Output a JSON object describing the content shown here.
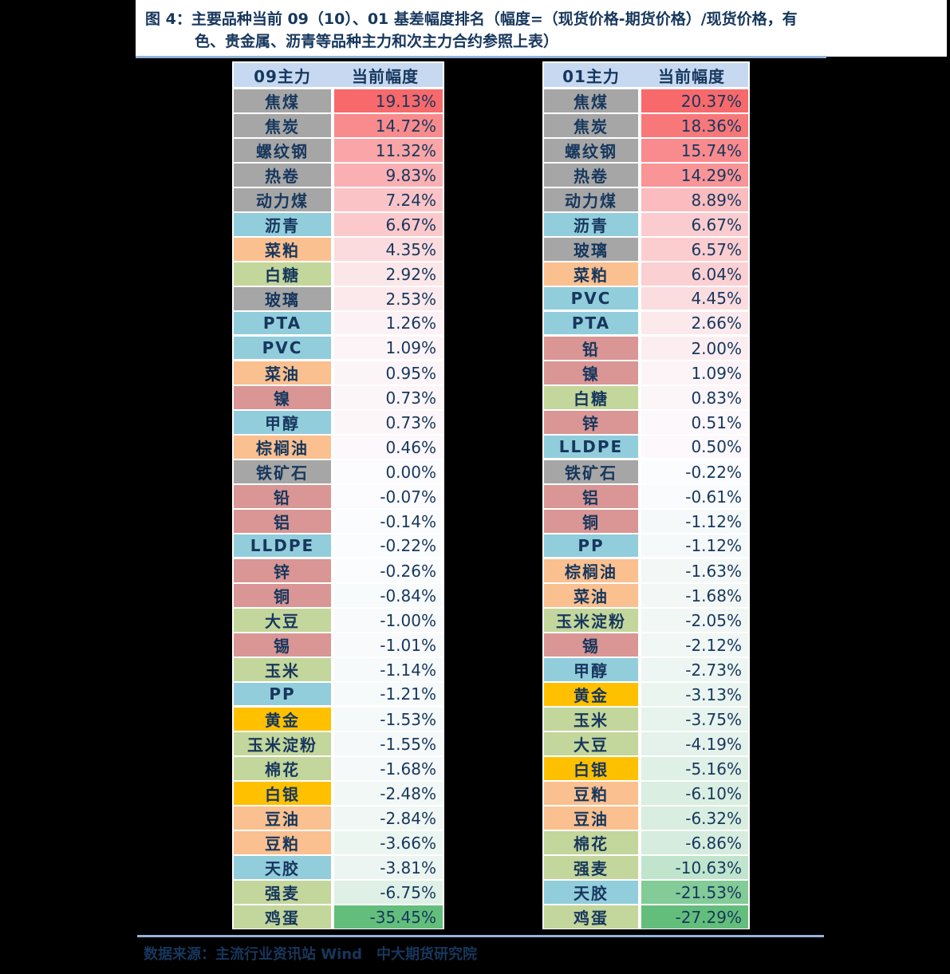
{
  "figure": {
    "title_line1": "图 4：主要品种当前 09（10）、01 基差幅度排名（幅度=（现货价格-期货价格）/现货价格，有",
    "title_line2": "色、贵金属、沥青等品种主力和次主力合约参照上表）",
    "source": "数据来源：主流行业资讯站 Wind　中大期货研究院"
  },
  "colors": {
    "background": "#000000",
    "panel": "#ffffff",
    "text": "#17375d",
    "rule": "#95b3d7",
    "header_bg": "#c6d9f1",
    "gradient_max_red": "#f8696b",
    "gradient_mid_white": "#fcfcff",
    "gradient_min_green": "#63be7b",
    "category_colors": {
      "coal-steel": "#a6a6a6",
      "chemical": "#92cddc",
      "oils-meal": "#fac08f",
      "agriculture": "#c3d69b",
      "base-metal": "#d99694",
      "precious-metal": "#ffc000"
    }
  },
  "chart_data": [
    {
      "type": "table",
      "title": "09主力基差幅度排名",
      "columns": [
        "09主力",
        "当前幅度"
      ],
      "color_scale": {
        "max_color": "#f8696b",
        "mid_color": "#fcfcff",
        "min_color": "#63be7b",
        "midpoint": 0
      },
      "rows": [
        {
          "name": "焦煤",
          "category": "coal-steel",
          "value": 19.13,
          "display": "19.13%"
        },
        {
          "name": "焦炭",
          "category": "coal-steel",
          "value": 14.72,
          "display": "14.72%"
        },
        {
          "name": "螺纹钢",
          "category": "coal-steel",
          "value": 11.32,
          "display": "11.32%"
        },
        {
          "name": "热卷",
          "category": "coal-steel",
          "value": 9.83,
          "display": "9.83%"
        },
        {
          "name": "动力煤",
          "category": "coal-steel",
          "value": 7.24,
          "display": "7.24%"
        },
        {
          "name": "沥青",
          "category": "chemical",
          "value": 6.67,
          "display": "6.67%"
        },
        {
          "name": "菜粕",
          "category": "oils-meal",
          "value": 4.35,
          "display": "4.35%"
        },
        {
          "name": "白糖",
          "category": "agriculture",
          "value": 2.92,
          "display": "2.92%"
        },
        {
          "name": "玻璃",
          "category": "coal-steel",
          "value": 2.53,
          "display": "2.53%"
        },
        {
          "name": "PTA",
          "category": "chemical",
          "value": 1.26,
          "display": "1.26%"
        },
        {
          "name": "PVC",
          "category": "chemical",
          "value": 1.09,
          "display": "1.09%"
        },
        {
          "name": "菜油",
          "category": "oils-meal",
          "value": 0.95,
          "display": "0.95%"
        },
        {
          "name": "镍",
          "category": "base-metal",
          "value": 0.73,
          "display": "0.73%"
        },
        {
          "name": "甲醇",
          "category": "chemical",
          "value": 0.73,
          "display": "0.73%"
        },
        {
          "name": "棕榈油",
          "category": "oils-meal",
          "value": 0.46,
          "display": "0.46%"
        },
        {
          "name": "铁矿石",
          "category": "coal-steel",
          "value": 0.0,
          "display": "0.00%"
        },
        {
          "name": "铅",
          "category": "base-metal",
          "value": -0.07,
          "display": "-0.07%"
        },
        {
          "name": "铝",
          "category": "base-metal",
          "value": -0.14,
          "display": "-0.14%"
        },
        {
          "name": "LLDPE",
          "category": "chemical",
          "value": -0.22,
          "display": "-0.22%"
        },
        {
          "name": "锌",
          "category": "base-metal",
          "value": -0.26,
          "display": "-0.26%"
        },
        {
          "name": "铜",
          "category": "base-metal",
          "value": -0.84,
          "display": "-0.84%"
        },
        {
          "name": "大豆",
          "category": "agriculture",
          "value": -1.0,
          "display": "-1.00%"
        },
        {
          "name": "锡",
          "category": "base-metal",
          "value": -1.01,
          "display": "-1.01%"
        },
        {
          "name": "玉米",
          "category": "agriculture",
          "value": -1.14,
          "display": "-1.14%"
        },
        {
          "name": "PP",
          "category": "chemical",
          "value": -1.21,
          "display": "-1.21%"
        },
        {
          "name": "黄金",
          "category": "precious-metal",
          "value": -1.53,
          "display": "-1.53%"
        },
        {
          "name": "玉米淀粉",
          "category": "agriculture",
          "value": -1.55,
          "display": "-1.55%"
        },
        {
          "name": "棉花",
          "category": "agriculture",
          "value": -1.68,
          "display": "-1.68%"
        },
        {
          "name": "白银",
          "category": "precious-metal",
          "value": -2.48,
          "display": "-2.48%"
        },
        {
          "name": "豆油",
          "category": "oils-meal",
          "value": -2.84,
          "display": "-2.84%"
        },
        {
          "name": "豆粕",
          "category": "oils-meal",
          "value": -3.66,
          "display": "-3.66%"
        },
        {
          "name": "天胶",
          "category": "chemical",
          "value": -3.81,
          "display": "-3.81%"
        },
        {
          "name": "强麦",
          "category": "agriculture",
          "value": -6.75,
          "display": "-6.75%"
        },
        {
          "name": "鸡蛋",
          "category": "agriculture",
          "value": -35.45,
          "display": "-35.45%"
        }
      ]
    },
    {
      "type": "table",
      "title": "01主力基差幅度排名",
      "columns": [
        "01主力",
        "当前幅度"
      ],
      "color_scale": {
        "max_color": "#f8696b",
        "mid_color": "#fcfcff",
        "min_color": "#63be7b",
        "midpoint": 0
      },
      "rows": [
        {
          "name": "焦煤",
          "category": "coal-steel",
          "value": 20.37,
          "display": "20.37%"
        },
        {
          "name": "焦炭",
          "category": "coal-steel",
          "value": 18.36,
          "display": "18.36%"
        },
        {
          "name": "螺纹钢",
          "category": "coal-steel",
          "value": 15.74,
          "display": "15.74%"
        },
        {
          "name": "热卷",
          "category": "coal-steel",
          "value": 14.29,
          "display": "14.29%"
        },
        {
          "name": "动力煤",
          "category": "coal-steel",
          "value": 8.89,
          "display": "8.89%"
        },
        {
          "name": "沥青",
          "category": "chemical",
          "value": 6.67,
          "display": "6.67%"
        },
        {
          "name": "玻璃",
          "category": "coal-steel",
          "value": 6.57,
          "display": "6.57%"
        },
        {
          "name": "菜粕",
          "category": "oils-meal",
          "value": 6.04,
          "display": "6.04%"
        },
        {
          "name": "PVC",
          "category": "chemical",
          "value": 4.45,
          "display": "4.45%"
        },
        {
          "name": "PTA",
          "category": "chemical",
          "value": 2.66,
          "display": "2.66%"
        },
        {
          "name": "铅",
          "category": "base-metal",
          "value": 2.0,
          "display": "2.00%"
        },
        {
          "name": "镍",
          "category": "base-metal",
          "value": 1.09,
          "display": "1.09%"
        },
        {
          "name": "白糖",
          "category": "agriculture",
          "value": 0.83,
          "display": "0.83%"
        },
        {
          "name": "锌",
          "category": "base-metal",
          "value": 0.51,
          "display": "0.51%"
        },
        {
          "name": "LLDPE",
          "category": "chemical",
          "value": 0.5,
          "display": "0.50%"
        },
        {
          "name": "铁矿石",
          "category": "coal-steel",
          "value": -0.22,
          "display": "-0.22%"
        },
        {
          "name": "铝",
          "category": "base-metal",
          "value": -0.61,
          "display": "-0.61%"
        },
        {
          "name": "铜",
          "category": "base-metal",
          "value": -1.12,
          "display": "-1.12%"
        },
        {
          "name": "PP",
          "category": "chemical",
          "value": -1.12,
          "display": "-1.12%"
        },
        {
          "name": "棕榈油",
          "category": "oils-meal",
          "value": -1.63,
          "display": "-1.63%"
        },
        {
          "name": "菜油",
          "category": "oils-meal",
          "value": -1.68,
          "display": "-1.68%"
        },
        {
          "name": "玉米淀粉",
          "category": "agriculture",
          "value": -2.05,
          "display": "-2.05%"
        },
        {
          "name": "锡",
          "category": "base-metal",
          "value": -2.12,
          "display": "-2.12%"
        },
        {
          "name": "甲醇",
          "category": "chemical",
          "value": -2.73,
          "display": "-2.73%"
        },
        {
          "name": "黄金",
          "category": "precious-metal",
          "value": -3.13,
          "display": "-3.13%"
        },
        {
          "name": "玉米",
          "category": "agriculture",
          "value": -3.75,
          "display": "-3.75%"
        },
        {
          "name": "大豆",
          "category": "agriculture",
          "value": -4.19,
          "display": "-4.19%"
        },
        {
          "name": "白银",
          "category": "precious-metal",
          "value": -5.16,
          "display": "-5.16%"
        },
        {
          "name": "豆粕",
          "category": "oils-meal",
          "value": -6.1,
          "display": "-6.10%"
        },
        {
          "name": "豆油",
          "category": "oils-meal",
          "value": -6.32,
          "display": "-6.32%"
        },
        {
          "name": "棉花",
          "category": "agriculture",
          "value": -6.86,
          "display": "-6.86%"
        },
        {
          "name": "强麦",
          "category": "agriculture",
          "value": -10.63,
          "display": "-10.63%"
        },
        {
          "name": "天胶",
          "category": "chemical",
          "value": -21.53,
          "display": "-21.53%"
        },
        {
          "name": "鸡蛋",
          "category": "agriculture",
          "value": -27.29,
          "display": "-27.29%"
        }
      ]
    }
  ]
}
